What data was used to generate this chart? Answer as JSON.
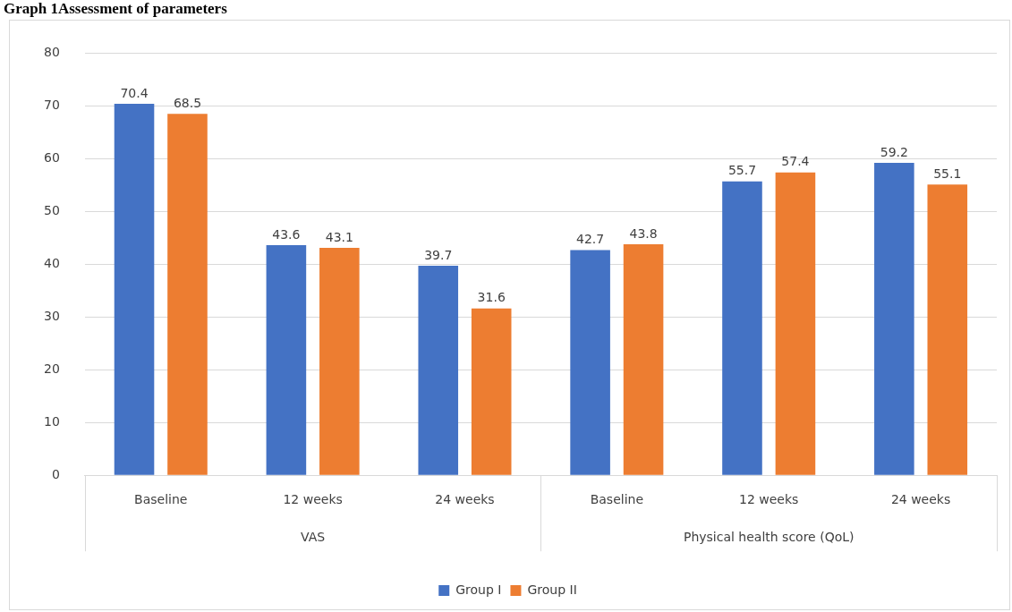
{
  "chart_data": {
    "type": "bar",
    "title": "Graph 1Assessment of parameters",
    "categories": [
      "Baseline",
      "12 weeks",
      "24 weeks",
      "Baseline",
      "12 weeks",
      "24 weeks"
    ],
    "series": [
      {
        "name": "Group I",
        "color": "#4472c4",
        "values": [
          70.4,
          43.6,
          39.7,
          42.7,
          55.7,
          59.2
        ]
      },
      {
        "name": "Group II",
        "color": "#ed7d31",
        "values": [
          68.5,
          43.1,
          31.6,
          43.8,
          57.4,
          55.1
        ]
      }
    ],
    "annotations": [
      "VAS",
      "Physical health score (QoL)"
    ],
    "ylim": [
      0,
      80
    ],
    "yticks": [
      0,
      10,
      20,
      30,
      40,
      50,
      60,
      70,
      80
    ],
    "grid": "y",
    "legend": "bottom",
    "data_labels": true
  }
}
